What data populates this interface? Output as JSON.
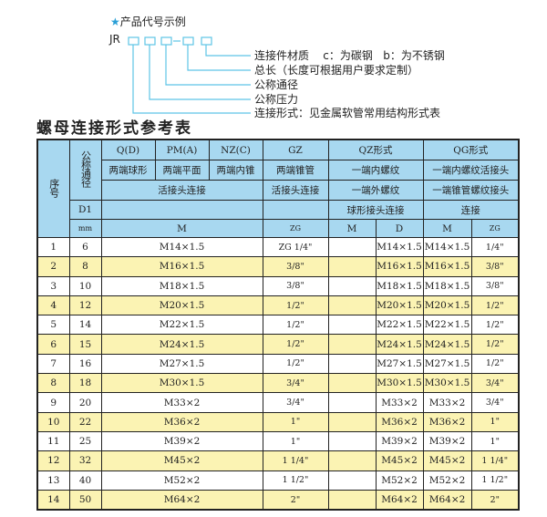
{
  "code_example": {
    "star_icon": "star-icon",
    "title": "产品代号示例",
    "prefix": "JR",
    "labels": [
      "连接件材质    c：为碳钢   b：为不锈钢",
      "总长（长度可根据用户要求定制）",
      "公称通径",
      "公称压力",
      "连接形式：见金属软管常用结构形式表"
    ],
    "accent_color": "#5ec4e6"
  },
  "table_title": "螺母连接形式参考表",
  "header": {
    "seq": "序号",
    "dn": "公称通径",
    "d1": "D1",
    "mm": "mm",
    "q": "Q(D)",
    "pm": "PM(A)",
    "nz": "NZ(C)",
    "gz": "GZ",
    "qz": "QZ形式",
    "qg": "QG形式",
    "q_desc": "两端球形",
    "pm_desc": "两端平面",
    "nz_desc": "两端内锥",
    "gz_desc": "两端锥管",
    "qz_desc1": "一端内螺纹",
    "qg_desc1": "一端内螺纹活接头",
    "union_joint": "活接头连接",
    "gz_joint": "活接头连接",
    "qz_desc2": "一端外螺纹",
    "qg_desc2": "一端锥管螺纹接头",
    "qz_desc3": "球形接头连接",
    "qg_desc3": "连接",
    "m": "M",
    "zg": "ZG",
    "qz_m": "M",
    "qz_d": "D",
    "qg_m": "M",
    "qg_zg": "ZG"
  },
  "colors": {
    "header": "#a8d8f0",
    "alt_row": "#fbf3b3"
  },
  "rows": [
    {
      "seq": "1",
      "dn": "6",
      "m": "M14×1.5",
      "gz": "ZG 1/4\"",
      "qz_m": "",
      "qz_d": "M14×1.5",
      "qg_m": "M14×1.5",
      "qg_zg": "1/4\""
    },
    {
      "seq": "2",
      "dn": "8",
      "m": "M16×1.5",
      "gz": "3/8\"",
      "qz_m": "",
      "qz_d": "M16×1.5",
      "qg_m": "M16×1.5",
      "qg_zg": "3/8\""
    },
    {
      "seq": "3",
      "dn": "10",
      "m": "M18×1.5",
      "gz": "3/8\"",
      "qz_m": "",
      "qz_d": "M18×1.5",
      "qg_m": "M18×1.5",
      "qg_zg": "3/8\""
    },
    {
      "seq": "4",
      "dn": "12",
      "m": "M20×1.5",
      "gz": "1/2\"",
      "qz_m": "",
      "qz_d": "M20×1.5",
      "qg_m": "M20×1.5",
      "qg_zg": "1/2\""
    },
    {
      "seq": "5",
      "dn": "14",
      "m": "M22×1.5",
      "gz": "1/2\"",
      "qz_m": "",
      "qz_d": "M22×1.5",
      "qg_m": "M22×1.5",
      "qg_zg": "1/2\""
    },
    {
      "seq": "6",
      "dn": "15",
      "m": "M24×1.5",
      "gz": "1/2\"",
      "qz_m": "",
      "qz_d": "M24×1.5",
      "qg_m": "M24×1.5",
      "qg_zg": "1/2\""
    },
    {
      "seq": "7",
      "dn": "16",
      "m": "M27×1.5",
      "gz": "1/2\"",
      "qz_m": "",
      "qz_d": "M27×1.5",
      "qg_m": "M27×1.5",
      "qg_zg": "1/2\""
    },
    {
      "seq": "8",
      "dn": "18",
      "m": "M30×1.5",
      "gz": "3/4\"",
      "qz_m": "",
      "qz_d": "M30×1.5",
      "qg_m": "M30×1.5",
      "qg_zg": "3/4\""
    },
    {
      "seq": "9",
      "dn": "20",
      "m": "M33×2",
      "gz": "3/4\"",
      "qz_m": "",
      "qz_d": "M33×2",
      "qg_m": "M33×2",
      "qg_zg": "3/4\""
    },
    {
      "seq": "10",
      "dn": "22",
      "m": "M36×2",
      "gz": "1\"",
      "qz_m": "",
      "qz_d": "M36×2",
      "qg_m": "M36×2",
      "qg_zg": "1\""
    },
    {
      "seq": "11",
      "dn": "25",
      "m": "M39×2",
      "gz": "1\"",
      "qz_m": "",
      "qz_d": "M39×2",
      "qg_m": "M39×2",
      "qg_zg": "1\""
    },
    {
      "seq": "12",
      "dn": "32",
      "m": "M45×2",
      "gz": "1 1/4\"",
      "qz_m": "",
      "qz_d": "M45×2",
      "qg_m": "M45×2",
      "qg_zg": "1 1/4\""
    },
    {
      "seq": "13",
      "dn": "40",
      "m": "M52×2",
      "gz": "1 1/2\"",
      "qz_m": "",
      "qz_d": "M52×2",
      "qg_m": "M52×2",
      "qg_zg": "1 1/2\""
    },
    {
      "seq": "14",
      "dn": "50",
      "m": "M64×2",
      "gz": "2\"",
      "qz_m": "",
      "qz_d": "M64×2",
      "qg_m": "M64×2",
      "qg_zg": "2\""
    }
  ]
}
